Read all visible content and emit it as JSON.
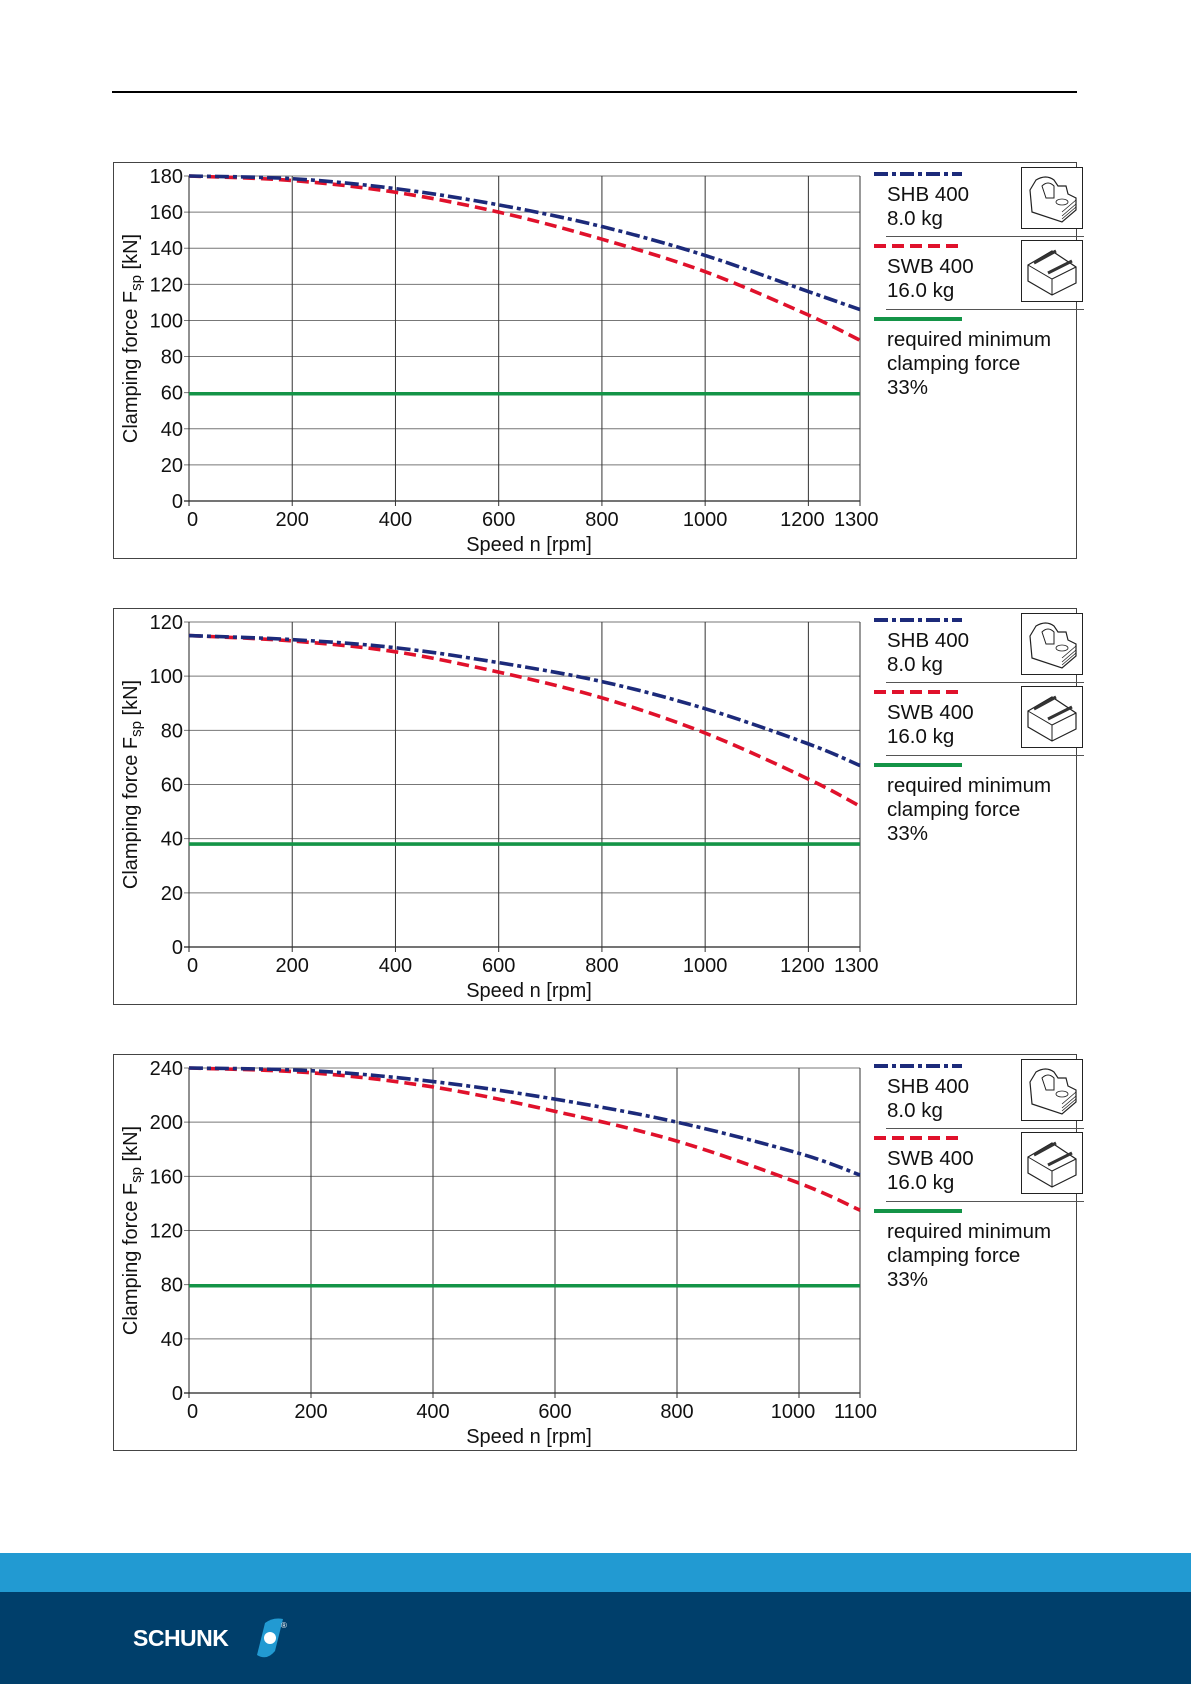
{
  "page": {
    "brand": "SCHUNK",
    "registered_mark": "®",
    "colors": {
      "shb_series": "#1c2a7a",
      "swb_series": "#e0112b",
      "min_force": "#149447",
      "footer_light": "#229ad2",
      "footer_dark": "#003f6b"
    }
  },
  "legend": {
    "shb": {
      "name": "SHB 400",
      "weight": "8.0 kg",
      "icon": "jaw-stepped-icon"
    },
    "swb": {
      "name": "SWB 400",
      "weight": "16.0 kg",
      "icon": "jaw-block-icon"
    },
    "min": {
      "line1": "required minimum",
      "line2": "clamping force",
      "line3": "33%"
    }
  },
  "chart_data": [
    {
      "type": "line",
      "title": "",
      "xlabel": "Speed n [rpm]",
      "ylabel": "Clamping force F_sp [kN]",
      "ylabel_main": "Clamping force F",
      "ylabel_sub": "sp",
      "ylabel_unit": " [kN]",
      "xlim": [
        0,
        1300
      ],
      "ylim": [
        0,
        180
      ],
      "xticks": [
        0,
        200,
        400,
        600,
        800,
        1000,
        1200,
        1300
      ],
      "yticks": [
        0,
        20,
        40,
        60,
        80,
        100,
        120,
        140,
        160,
        180
      ],
      "grid": true,
      "legend_position": "right",
      "x": [
        0,
        200,
        400,
        600,
        800,
        1000,
        1200,
        1300
      ],
      "series": [
        {
          "name": "SHB 400 8.0 kg",
          "style": "dash-dot",
          "values": [
            180,
            178.5,
            173,
            164,
            152,
            136,
            116,
            106
          ]
        },
        {
          "name": "SWB 400 16.0 kg",
          "style": "dashed",
          "values": [
            180,
            177.5,
            171,
            160,
            145,
            127,
            103,
            89
          ]
        },
        {
          "name": "required minimum clamping force 33%",
          "style": "solid",
          "values": [
            59.4,
            59.4,
            59.4,
            59.4,
            59.4,
            59.4,
            59.4,
            59.4
          ]
        }
      ]
    },
    {
      "type": "line",
      "title": "",
      "xlabel": "Speed n [rpm]",
      "ylabel": "Clamping force F_sp [kN]",
      "ylabel_main": "Clamping force F",
      "ylabel_sub": "sp",
      "ylabel_unit": " [kN]",
      "xlim": [
        0,
        1300
      ],
      "ylim": [
        0,
        120
      ],
      "xticks": [
        0,
        200,
        400,
        600,
        800,
        1000,
        1200,
        1300
      ],
      "yticks": [
        0,
        20,
        40,
        60,
        80,
        100,
        120
      ],
      "grid": true,
      "legend_position": "right",
      "x": [
        0,
        200,
        400,
        600,
        800,
        1000,
        1200,
        1300
      ],
      "series": [
        {
          "name": "SHB 400 8.0 kg",
          "style": "dash-dot",
          "values": [
            115,
            113.5,
            110.5,
            105,
            98,
            88,
            75,
            67
          ]
        },
        {
          "name": "SWB 400 16.0 kg",
          "style": "dashed",
          "values": [
            115,
            113,
            109,
            101.5,
            92,
            79,
            62,
            52
          ]
        },
        {
          "name": "required minimum clamping force 33%",
          "style": "solid",
          "values": [
            38,
            38,
            38,
            38,
            38,
            38,
            38,
            38
          ]
        }
      ]
    },
    {
      "type": "line",
      "title": "",
      "xlabel": "Speed n [rpm]",
      "ylabel": "Clamping force F_sp [kN]",
      "ylabel_main": "Clamping force F",
      "ylabel_sub": "sp",
      "ylabel_unit": " [kN]",
      "xlim": [
        0,
        1100
      ],
      "ylim": [
        0,
        240
      ],
      "xticks": [
        0,
        200,
        400,
        600,
        800,
        1000,
        1100
      ],
      "yticks": [
        0,
        40,
        80,
        120,
        160,
        200,
        240
      ],
      "grid": true,
      "legend_position": "right",
      "x": [
        0,
        200,
        400,
        600,
        800,
        1000,
        1100
      ],
      "series": [
        {
          "name": "SHB 400 8.0 kg",
          "style": "dash-dot",
          "values": [
            240,
            238,
            230,
            217,
            200,
            177,
            161
          ]
        },
        {
          "name": "SWB 400 16.0 kg",
          "style": "dashed",
          "values": [
            240,
            236.5,
            226,
            208,
            186,
            155,
            135
          ]
        },
        {
          "name": "required minimum clamping force 33%",
          "style": "solid",
          "values": [
            79.2,
            79.2,
            79.2,
            79.2,
            79.2,
            79.2,
            79.2
          ]
        }
      ]
    }
  ]
}
